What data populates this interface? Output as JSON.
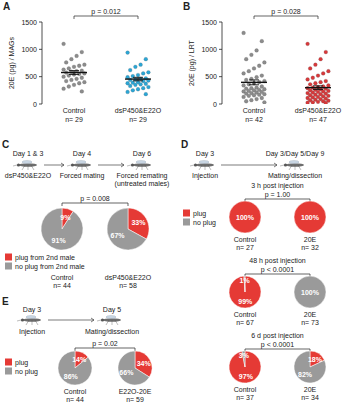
{
  "chart_data": [
    {
      "type": "scatter",
      "panel": "A",
      "ylabel": "20E (pg) / MAGs",
      "ylim": [
        0,
        1500
      ],
      "yticks": [
        0,
        500,
        1000,
        1500
      ],
      "p_value": "p = 0.012",
      "series": [
        {
          "name": "Control",
          "n": "n= 29",
          "color": "#8c8c8c",
          "mean": 576,
          "sem": 35,
          "values": [
            1100,
            950,
            880,
            820,
            760,
            720,
            700,
            680,
            650,
            630,
            610,
            600,
            590,
            575,
            560,
            550,
            540,
            520,
            500,
            480,
            460,
            440,
            420,
            400,
            380,
            350,
            320,
            280,
            230
          ]
        },
        {
          "name": "dsP450&E22O",
          "n": "n= 29",
          "color": "#2aa6d6",
          "mean": 456,
          "sem": 32,
          "values": [
            940,
            820,
            720,
            680,
            620,
            580,
            560,
            530,
            510,
            490,
            470,
            460,
            450,
            440,
            430,
            420,
            400,
            390,
            380,
            370,
            360,
            350,
            330,
            310,
            290,
            270,
            250,
            220,
            180
          ]
        }
      ]
    },
    {
      "type": "scatter",
      "panel": "B",
      "ylabel": "20E (pg) / LRT",
      "ylim": [
        0,
        1500
      ],
      "yticks": [
        0,
        500,
        1000,
        1500
      ],
      "p_value": "p = 0.028",
      "series": [
        {
          "name": "Control",
          "n": "n= 42",
          "color": "#8c8c8c",
          "mean": 396,
          "sem": 45,
          "values": [
            1300,
            1150,
            980,
            900,
            820,
            760,
            700,
            650,
            600,
            560,
            520,
            490,
            460,
            440,
            420,
            400,
            380,
            360,
            340,
            320,
            300,
            290,
            280,
            270,
            260,
            250,
            240,
            230,
            220,
            210,
            200,
            190,
            180,
            170,
            160,
            150,
            130,
            110,
            90,
            70,
            50,
            30
          ]
        },
        {
          "name": "dsP450&E22O",
          "n": "n= 47",
          "color": "#d8383a",
          "mean": 299,
          "sem": 33,
          "values": [
            1100,
            950,
            820,
            720,
            650,
            600,
            560,
            520,
            480,
            450,
            420,
            400,
            380,
            360,
            340,
            320,
            310,
            300,
            290,
            280,
            270,
            260,
            250,
            240,
            230,
            220,
            210,
            200,
            190,
            180,
            170,
            160,
            150,
            140,
            130,
            120,
            110,
            100,
            90,
            80,
            70,
            60,
            50,
            40,
            30,
            25,
            20
          ]
        }
      ]
    },
    {
      "type": "pie",
      "panel": "C",
      "legend": "lower left",
      "steps": [
        {
          "day": "Day 1 & 3",
          "lines": [
            "dsP450&E22O"
          ]
        },
        {
          "day": "Day 4",
          "lines": [
            "Forced mating"
          ]
        },
        {
          "day": "Day 6",
          "lines": [
            "Forced remating",
            "(untreated males)"
          ]
        }
      ],
      "categories": [
        "plug from 2nd male",
        "no plug from 2nd male"
      ],
      "colors": [
        "#e53a35",
        "#9a9a9a"
      ],
      "p_value": "p = 0.008",
      "groups": [
        {
          "name": "Control",
          "n": "n= 44",
          "values": [
            9,
            91
          ],
          "value_labels": [
            "9%",
            "91%"
          ]
        },
        {
          "name": "dsP450&E22O",
          "n": "n= 58",
          "values": [
            33,
            67
          ],
          "value_labels": [
            "33%",
            "67%"
          ]
        }
      ]
    },
    {
      "type": "pie",
      "panel": "D",
      "legend": "upper left",
      "steps": [
        {
          "day": "Day 3",
          "lines": [
            "Injection"
          ]
        },
        {
          "day": "Day 3/Day 5/Day 9",
          "lines": [
            "Mating/dissection"
          ]
        }
      ],
      "categories": [
        "plug",
        "no plug"
      ],
      "colors": [
        "#e53a35",
        "#9a9a9a"
      ],
      "rows": [
        {
          "title": "3 h post injection",
          "p_value": "p = 1.00",
          "groups": [
            {
              "name": "Control",
              "n": "n= 27",
              "values": [
                100,
                0
              ],
              "value_labels": [
                "100%",
                null
              ]
            },
            {
              "name": "20E",
              "n": "n= 32",
              "values": [
                100,
                0
              ],
              "value_labels": [
                "100%",
                null
              ]
            }
          ]
        },
        {
          "title": "48 h post injection",
          "p_value": "p < 0.0001",
          "groups": [
            {
              "name": "Control",
              "n": "n= 67",
              "values": [
                99,
                1
              ],
              "value_labels": [
                "99%",
                "1%"
              ]
            },
            {
              "name": "20E",
              "n": "n= 73",
              "values": [
                0,
                100
              ],
              "value_labels": [
                null,
                "100%"
              ]
            }
          ]
        },
        {
          "title": "6 d post injection",
          "p_value": "p < 0.0001",
          "groups": [
            {
              "name": "Control",
              "n": "n= 37",
              "values": [
                97,
                3
              ],
              "value_labels": [
                "97%",
                "3%"
              ]
            },
            {
              "name": "20E",
              "n": "n= 34",
              "values": [
                18,
                82
              ],
              "value_labels": [
                "18%",
                "82%"
              ]
            }
          ]
        }
      ]
    },
    {
      "type": "pie",
      "panel": "E",
      "legend": "lower left",
      "steps": [
        {
          "day": "Day 3",
          "lines": [
            "Injection"
          ]
        },
        {
          "day": "Day 5",
          "lines": [
            "Mating/dissection"
          ]
        }
      ],
      "categories": [
        "plug",
        "no plug"
      ],
      "colors": [
        "#e53a35",
        "#9a9a9a"
      ],
      "p_value": "p = 0.02",
      "groups": [
        {
          "name": "Control",
          "n": "n= 44",
          "values": [
            14,
            86
          ],
          "value_labels": [
            "14%",
            "86%"
          ]
        },
        {
          "name": "E22O-20E",
          "n": "n= 59",
          "values": [
            34,
            66
          ],
          "value_labels": [
            "34%",
            "66%"
          ]
        }
      ]
    }
  ]
}
